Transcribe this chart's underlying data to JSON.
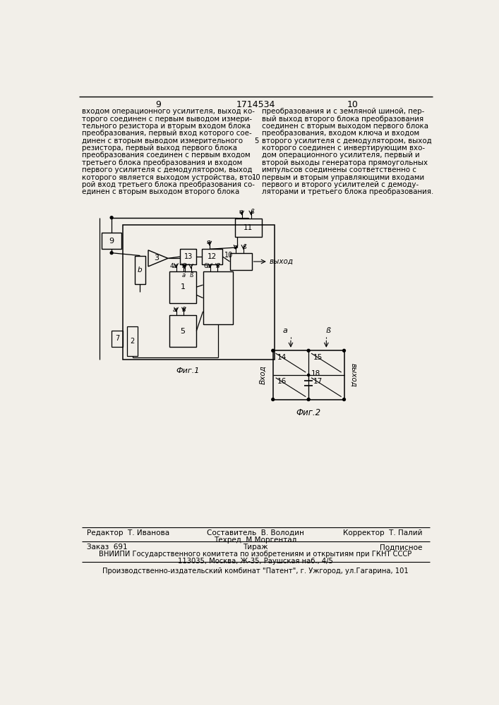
{
  "page_bg": "#f2efe9",
  "page_num_left": "9",
  "page_num_center": "1714534",
  "page_num_right": "10",
  "col1_text": [
    "входом операционного усилителя, выход ко-",
    "торого соединен с первым выводом измери-",
    "тельного резистора и вторым входом блока",
    "преобразования, первый вход которого сое-",
    "динен с вторым выводом измерительного",
    "резистора, первый выход первого блока",
    "преобразования соединен с первым входом",
    "третьего блока преобразования и входом",
    "первого усилителя с демодулятором, выход",
    "которого является выходом устройства, вто-",
    "рой вход третьего блока преобразования со-",
    "единен с вторым выходом второго блока"
  ],
  "col2_text": [
    "преобразования и с земляной шиной, пер-",
    "вый выход второго блока преобразования",
    "соединен с вторым выходом первого блока",
    "преобразования, входом ключа и входом",
    "второго усилителя с демодулятором, выход",
    "которого соединен с инвертирующим вхо-",
    "дом операционного усилителя, первый и",
    "второй выходы генератора прямоугольных",
    "импульсов соединены соответственно с",
    "первым и вторым управляющими входами",
    "первого и второго усилителей с демоду-",
    "ляторами и третьего блока преобразования."
  ],
  "fig1_caption": "Фиг.1",
  "fig2_caption": "Фиг.2",
  "footer_editor": "Редактор  Т. Иванова",
  "footer_composer": "Составитель  В. Володин",
  "footer_techred": "Техред  М.Моргентал",
  "footer_corrector": "Корректор  Т. Палий",
  "footer_order": "Заказ  691",
  "footer_tirazh": "Тираж",
  "footer_podpisnoe": "Подписное",
  "footer_vniipи": "ВНИИПИ Государственного комитета по изобретениям и открытиям при ГКНТ СССР",
  "footer_address": "113035, Москва, Ж-35, Раушская наб., 4/5",
  "footer_patent": "Производственно-издательский комбинат \"Патент\", г. Ужгород, ул.Гагарина, 101"
}
